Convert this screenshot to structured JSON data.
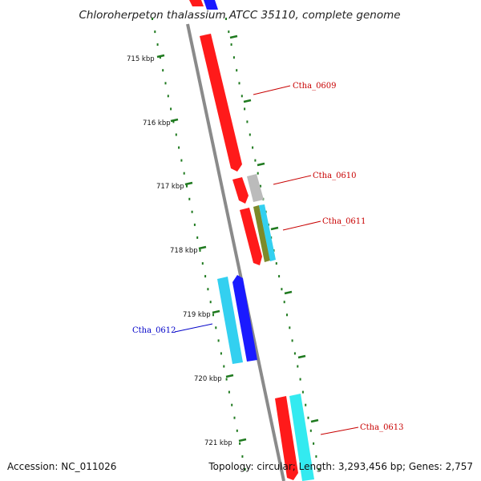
{
  "title": "Chloroherpeton thalassium ATCC 35110, complete genome",
  "footer": {
    "accession": "Accession: NC_011026",
    "summary": "Topology: circular; Length: 3,293,456 bp; Genes: 2,757"
  },
  "colors": {
    "backbone": "#8a8a8a",
    "tick": "#1f7a1f",
    "forward_label": "#c80000",
    "reverse_label": "#0000c8",
    "gene_red": "#ff1a1a",
    "gene_blue": "#1a1aff",
    "gene_cyan": "#33d0f0",
    "gene_grey": "#bbbbbb",
    "gene_olive": "#7d8a2a"
  },
  "ticks": [
    {
      "label": "715 kbp"
    },
    {
      "label": "716 kbp"
    },
    {
      "label": "717 kbp"
    },
    {
      "label": "718 kbp"
    },
    {
      "label": "719 kbp"
    },
    {
      "label": "720 kbp"
    },
    {
      "label": "721 kbp"
    }
  ],
  "genes": [
    {
      "label": "Ctha_0609",
      "strand": "forward"
    },
    {
      "label": "Ctha_0610",
      "strand": "forward"
    },
    {
      "label": "Ctha_0611",
      "strand": "forward"
    },
    {
      "label": "Ctha_0612",
      "strand": "reverse"
    },
    {
      "label": "Ctha_0613",
      "strand": "forward"
    }
  ]
}
